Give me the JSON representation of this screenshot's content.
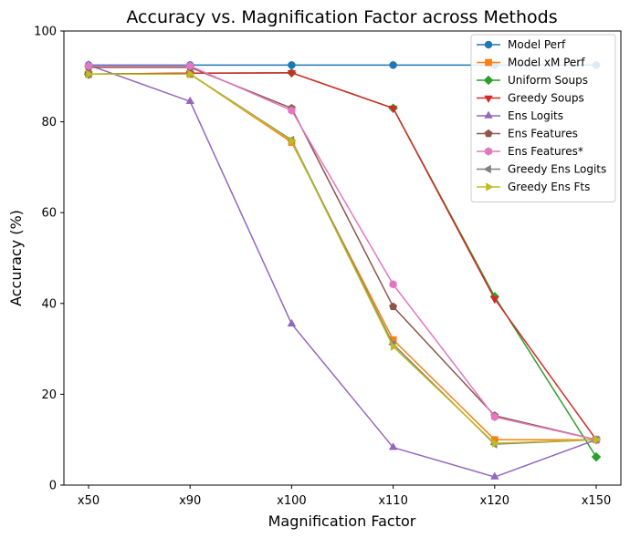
{
  "chart_data": {
    "type": "line",
    "title": "Accuracy vs. Magnification Factor across Methods",
    "xlabel": "Magnification Factor",
    "ylabel": "Accuracy (%)",
    "categories": [
      "x50",
      "x90",
      "x100",
      "x110",
      "x120",
      "x150"
    ],
    "ylim": [
      0,
      100
    ],
    "yticks": [
      0,
      20,
      40,
      60,
      80,
      100
    ],
    "grid": false,
    "legend_position": "top-right",
    "series": [
      {
        "name": "Model Perf",
        "color": "#1f77b4",
        "marker": "circle",
        "values": [
          92.5,
          92.5,
          92.5,
          92.5,
          92.5,
          92.5
        ]
      },
      {
        "name": "Model xM Perf",
        "color": "#ff7f0e",
        "marker": "square",
        "values": [
          90.5,
          90.5,
          75.5,
          32.0,
          10.0,
          10.0
        ]
      },
      {
        "name": "Uniform Soups",
        "color": "#2ca02c",
        "marker": "diamond",
        "values": [
          90.5,
          90.7,
          90.8,
          83.0,
          41.5,
          6.2
        ]
      },
      {
        "name": "Greedy Soups",
        "color": "#d62728",
        "marker": "triangle-down",
        "values": [
          90.5,
          90.7,
          90.8,
          83.0,
          41.0,
          10.0
        ]
      },
      {
        "name": "Ens Logits",
        "color": "#9467bd",
        "marker": "triangle-up",
        "values": [
          92.5,
          84.5,
          35.5,
          8.3,
          1.8,
          10.0
        ]
      },
      {
        "name": "Ens Features",
        "color": "#8c564b",
        "marker": "pentagon",
        "values": [
          92.0,
          92.0,
          83.0,
          39.3,
          15.3,
          10.0
        ]
      },
      {
        "name": "Ens Features*",
        "color": "#e377c2",
        "marker": "hexagon",
        "values": [
          92.3,
          92.3,
          82.5,
          44.2,
          15.0,
          10.0
        ]
      },
      {
        "name": "Greedy Ens Logits",
        "color": "#7f7f7f",
        "marker": "triangle-left",
        "values": [
          90.5,
          90.5,
          76.0,
          31.0,
          9.0,
          10.0
        ]
      },
      {
        "name": "Greedy Ens Fts",
        "color": "#bcbd22",
        "marker": "triangle-right",
        "values": [
          90.5,
          90.5,
          75.8,
          30.5,
          9.2,
          10.0
        ]
      }
    ]
  }
}
